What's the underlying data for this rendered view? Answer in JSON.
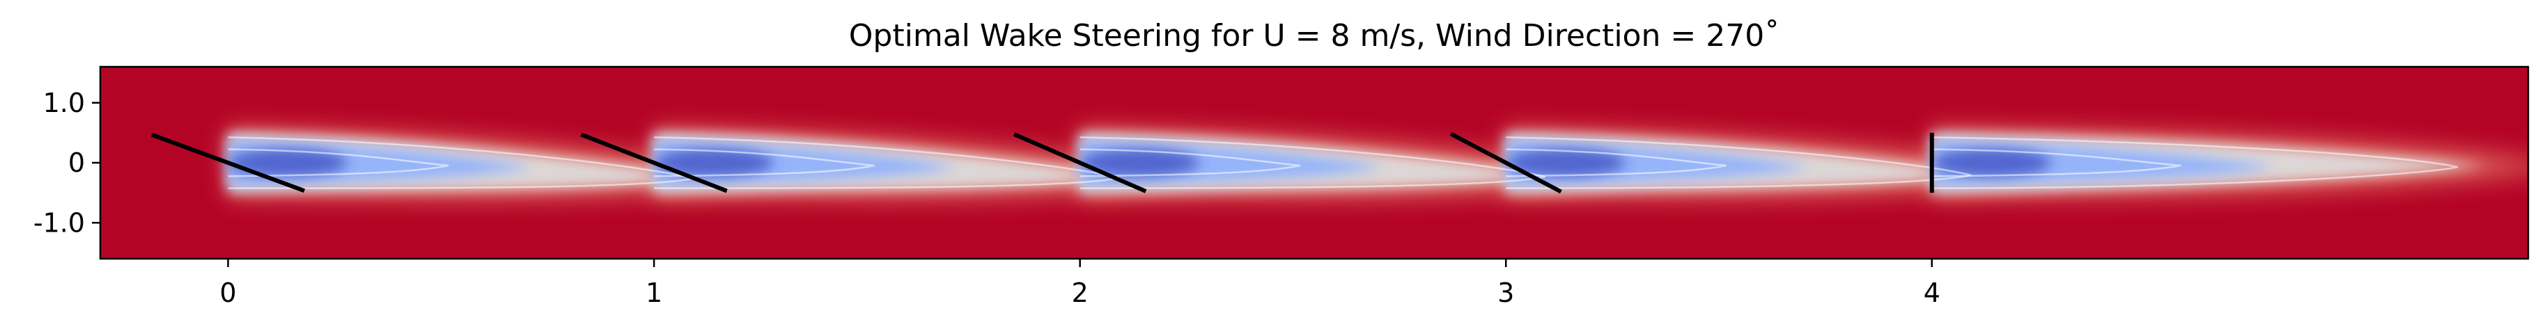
{
  "chart_data": {
    "type": "heatmap",
    "title": "Optimal Wake Steering for U = 8 m/s, Wind Direction = 270$^\\circ$",
    "title_display": "Optimal Wake Steering for U = 8 m/s, Wind Direction = 270˚",
    "xlabel": "",
    "ylabel": "",
    "xlim": [
      -0.3,
      5.4
    ],
    "ylim": [
      -1.6,
      1.6
    ],
    "x_ticks": [
      0,
      1,
      2,
      3,
      4
    ],
    "x_tick_labels": [
      "0",
      "1",
      "2",
      "3",
      "4"
    ],
    "y_ticks": [
      1.0,
      0,
      -1.0
    ],
    "y_tick_labels": [
      "1.0",
      "0",
      "-1.0"
    ],
    "grid": false,
    "legend": "none",
    "colormap": "coolwarm",
    "colormap_stops": [
      "#3b4cc0",
      "#8db0fe",
      "#dddddd",
      "#f49a7b",
      "#b40426"
    ],
    "background_color": "#b40426",
    "rotor_color": "#000000",
    "turbines": [
      {
        "x": 0,
        "y": 0,
        "yaw_deg": -21
      },
      {
        "x": 1,
        "y": 0,
        "yaw_deg": -20
      },
      {
        "x": 2,
        "y": 0,
        "yaw_deg": -18
      },
      {
        "x": 3,
        "y": 0,
        "yaw_deg": -15
      },
      {
        "x": 4,
        "y": 0,
        "yaw_deg": 0
      }
    ],
    "rotor_diameter": 1.0
  }
}
